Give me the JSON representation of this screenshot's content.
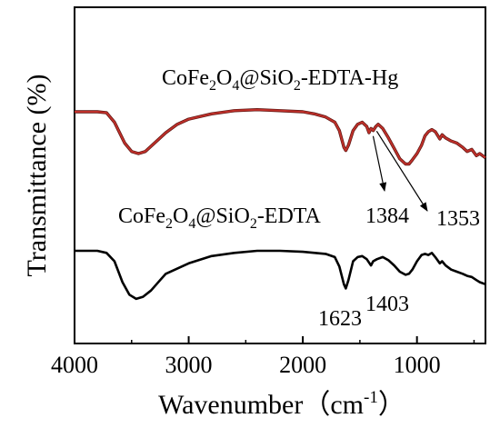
{
  "chart_data": {
    "type": "line",
    "title": "",
    "xlabel": "Wavenumber（cm",
    "xlabel_sup": "-1",
    "xlabel_end": "）",
    "ylabel": "Transmittance (%)",
    "xlim": [
      4000,
      400
    ],
    "x_reversed": true,
    "y_ticks_shown": false,
    "x_ticks": [
      4000,
      3000,
      2000,
      1000
    ],
    "x_tick_labels": [
      "4000",
      "3000",
      "2000",
      "1000"
    ],
    "grid": false,
    "series": [
      {
        "name": "CoFe2O4@SiO2-EDTA-Hg",
        "label_parts": [
          "CoFe",
          "2",
          "O",
          "4",
          "@SiO",
          "2",
          "-EDTA-Hg"
        ],
        "color": "#c0302a",
        "outline_color": "#5a1410",
        "offset": 0.78,
        "points": [
          [
            4000,
            0.8
          ],
          [
            3800,
            0.8
          ],
          [
            3720,
            0.79
          ],
          [
            3650,
            0.7
          ],
          [
            3560,
            0.5
          ],
          [
            3500,
            0.42
          ],
          [
            3440,
            0.4
          ],
          [
            3380,
            0.42
          ],
          [
            3300,
            0.5
          ],
          [
            3200,
            0.6
          ],
          [
            3100,
            0.68
          ],
          [
            3000,
            0.73
          ],
          [
            2800,
            0.78
          ],
          [
            2600,
            0.81
          ],
          [
            2400,
            0.82
          ],
          [
            2200,
            0.81
          ],
          [
            2000,
            0.8
          ],
          [
            1900,
            0.78
          ],
          [
            1800,
            0.75
          ],
          [
            1720,
            0.7
          ],
          [
            1680,
            0.62
          ],
          [
            1640,
            0.46
          ],
          [
            1623,
            0.43
          ],
          [
            1600,
            0.48
          ],
          [
            1560,
            0.62
          ],
          [
            1520,
            0.68
          ],
          [
            1480,
            0.7
          ],
          [
            1440,
            0.66
          ],
          [
            1420,
            0.6
          ],
          [
            1403,
            0.64
          ],
          [
            1384,
            0.62
          ],
          [
            1360,
            0.66
          ],
          [
            1340,
            0.68
          ],
          [
            1300,
            0.64
          ],
          [
            1250,
            0.55
          ],
          [
            1200,
            0.45
          ],
          [
            1150,
            0.35
          ],
          [
            1100,
            0.3
          ],
          [
            1070,
            0.3
          ],
          [
            1040,
            0.34
          ],
          [
            1000,
            0.4
          ],
          [
            960,
            0.48
          ],
          [
            930,
            0.57
          ],
          [
            900,
            0.61
          ],
          [
            870,
            0.63
          ],
          [
            840,
            0.61
          ],
          [
            800,
            0.54
          ],
          [
            780,
            0.58
          ],
          [
            750,
            0.55
          ],
          [
            700,
            0.52
          ],
          [
            650,
            0.5
          ],
          [
            600,
            0.46
          ],
          [
            560,
            0.42
          ],
          [
            520,
            0.44
          ],
          [
            480,
            0.38
          ],
          [
            450,
            0.4
          ],
          [
            400,
            0.36
          ]
        ]
      },
      {
        "name": "CoFe2O4@SiO2-EDTA",
        "label_parts": [
          "CoFe",
          "2",
          "O",
          "4",
          "@SiO",
          "2",
          "-EDTA"
        ],
        "color": "#000000",
        "offset": 0.0,
        "points": [
          [
            4000,
            0.8
          ],
          [
            3800,
            0.8
          ],
          [
            3720,
            0.78
          ],
          [
            3650,
            0.7
          ],
          [
            3580,
            0.5
          ],
          [
            3520,
            0.38
          ],
          [
            3460,
            0.34
          ],
          [
            3400,
            0.36
          ],
          [
            3330,
            0.42
          ],
          [
            3250,
            0.52
          ],
          [
            3200,
            0.58
          ],
          [
            3100,
            0.63
          ],
          [
            3000,
            0.68
          ],
          [
            2800,
            0.75
          ],
          [
            2600,
            0.78
          ],
          [
            2400,
            0.8
          ],
          [
            2200,
            0.8
          ],
          [
            2000,
            0.79
          ],
          [
            1800,
            0.77
          ],
          [
            1720,
            0.74
          ],
          [
            1680,
            0.65
          ],
          [
            1640,
            0.48
          ],
          [
            1623,
            0.44
          ],
          [
            1600,
            0.52
          ],
          [
            1560,
            0.7
          ],
          [
            1520,
            0.74
          ],
          [
            1480,
            0.75
          ],
          [
            1440,
            0.72
          ],
          [
            1403,
            0.66
          ],
          [
            1384,
            0.7
          ],
          [
            1350,
            0.72
          ],
          [
            1300,
            0.74
          ],
          [
            1250,
            0.71
          ],
          [
            1200,
            0.66
          ],
          [
            1150,
            0.6
          ],
          [
            1100,
            0.57
          ],
          [
            1070,
            0.58
          ],
          [
            1040,
            0.62
          ],
          [
            1000,
            0.7
          ],
          [
            960,
            0.76
          ],
          [
            930,
            0.77
          ],
          [
            900,
            0.76
          ],
          [
            870,
            0.78
          ],
          [
            840,
            0.74
          ],
          [
            800,
            0.68
          ],
          [
            780,
            0.7
          ],
          [
            750,
            0.66
          ],
          [
            700,
            0.62
          ],
          [
            650,
            0.6
          ],
          [
            600,
            0.58
          ],
          [
            560,
            0.56
          ],
          [
            520,
            0.55
          ],
          [
            480,
            0.52
          ],
          [
            450,
            0.5
          ],
          [
            400,
            0.48
          ]
        ]
      }
    ],
    "annotations": [
      {
        "text": "1384",
        "series": 0,
        "x": 1384
      },
      {
        "text": "1353",
        "series": 0,
        "x": 1353
      },
      {
        "text": "1623",
        "series": 1,
        "x": 1623
      },
      {
        "text": "1403",
        "series": 1,
        "x": 1403
      }
    ]
  }
}
